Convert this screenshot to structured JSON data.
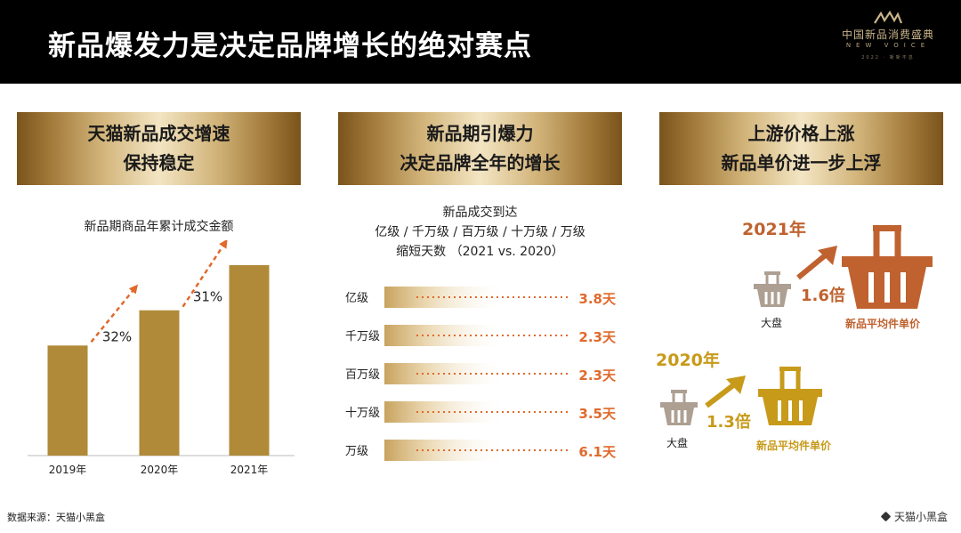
{
  "title": "新品爆发力是决定品牌增长的绝对赛点",
  "logo": {
    "cn": "中国新品消费盛典",
    "en": "NEW VOICE",
    "sub": "2022 · 新新不息"
  },
  "columns": [
    {
      "header": [
        "天猫新品成交增速",
        "保持稳定"
      ]
    },
    {
      "header": [
        "新品期引爆力",
        "决定品牌全年的增长"
      ]
    },
    {
      "header": [
        "上游价格上涨",
        "新品单价进一步上浮"
      ]
    }
  ],
  "chart_data": [
    {
      "type": "bar",
      "title": "新品期商品年累计成交金额",
      "categories": [
        "2019年",
        "2020年",
        "2021年"
      ],
      "values": [
        1.0,
        1.32,
        1.73
      ],
      "growth_labels": [
        "32%",
        "31%"
      ],
      "color": "#b08a38",
      "arrow_color": "#e06a2c"
    },
    {
      "type": "bar",
      "title_lines": [
        "新品成交到达",
        "亿级 / 千万级 / 百万级 / 十万级 / 万级",
        "缩短天数 （2021 vs. 2020）"
      ],
      "categories": [
        "亿级",
        "千万级",
        "百万级",
        "十万级",
        "万级"
      ],
      "values": [
        3.8,
        2.3,
        2.3,
        3.5,
        6.1
      ],
      "value_labels": [
        "3.8天",
        "2.3天",
        "2.3天",
        "3.5天",
        "6.1天"
      ],
      "unit": "天",
      "value_color": "#e06a2c"
    }
  ],
  "price": {
    "y2021": {
      "year": "2021年",
      "multiplier": "1.6倍",
      "market": "大盘",
      "new": "新品平均件单价",
      "color": "#c0622f"
    },
    "y2020": {
      "year": "2020年",
      "multiplier": "1.3倍",
      "market": "大盘",
      "new": "新品平均件单价",
      "color": "#c79a1a"
    }
  },
  "source": "数据来源：天猫小黑盒",
  "brand": "天猫小黑盒"
}
